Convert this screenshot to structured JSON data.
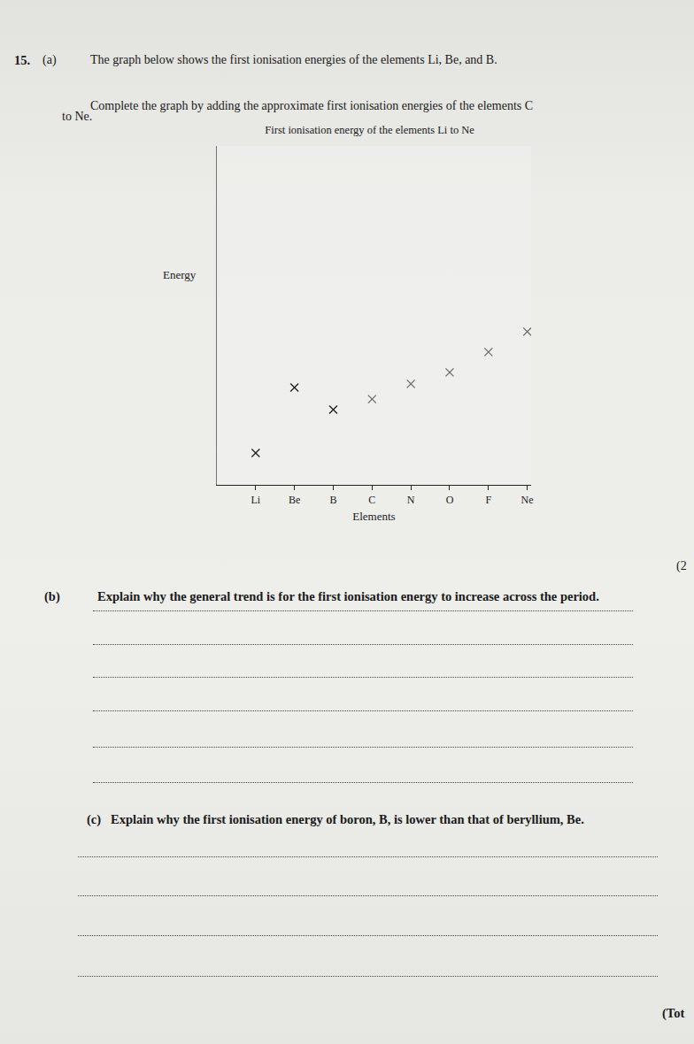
{
  "question_number": "15.",
  "part_a": {
    "label": "(a)",
    "lines": [
      "The graph below shows the first ionisation energies of the elements Li, Be, and B.",
      "Complete the graph by adding the approximate first ionisation energies of the elements C",
      "to Ne."
    ],
    "marks": "(2"
  },
  "chart_data": {
    "type": "scatter",
    "title": "First ionisation energy of the elements Li to Ne",
    "x_label": "Elements",
    "y_label": "Energy",
    "categories": [
      "Li",
      "Be",
      "B",
      "C",
      "N",
      "O",
      "F",
      "Ne"
    ],
    "values": [
      9.4,
      28.7,
      22.2,
      25.3,
      29.8,
      33.2,
      39.2,
      45.2
    ],
    "colors": [
      "#1e1e1e",
      "#1e1e1e",
      "#1e1e1e",
      "#6a6a6a",
      "#6a6a6a",
      "#6a6a6a",
      "#6a6a6a",
      "#6a6a6a"
    ],
    "marker": "x",
    "ylim": [
      0,
      100
    ],
    "tick_labels": "x",
    "grid": false
  },
  "part_b": {
    "label": "(b)",
    "text": "Explain why the general trend is for the first ionisation energy to increase across the period."
  },
  "part_c": {
    "label": "(c)",
    "text": "Explain why the first ionisation energy of boron, B, is lower than that of beryllium, Be."
  },
  "total": "(Tot"
}
